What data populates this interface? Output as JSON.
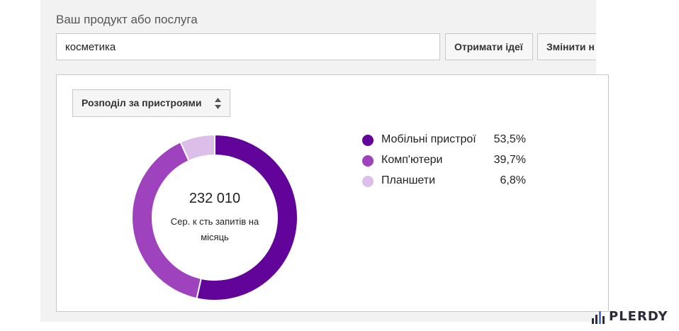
{
  "search": {
    "label": "Ваш продукт або послуга",
    "value": "косметика"
  },
  "buttons": {
    "get_ideas": "Отримати ідеї",
    "change": "Змінити н"
  },
  "device_select": {
    "label": "Розподіл за пристроями",
    "icon": "sort-arrows-icon"
  },
  "summary": {
    "total": "232 010",
    "caption_line1": "Сер. к сть запитів на",
    "caption_line2": "місяць"
  },
  "chart_data": {
    "type": "pie",
    "donut": true,
    "categories": [
      "Мобільні пристрої",
      "Комп'ютери",
      "Планшети"
    ],
    "values": [
      53.5,
      39.7,
      6.8
    ],
    "value_labels": [
      "53,5%",
      "39,7%",
      "6,8%"
    ],
    "colors": [
      "#62049a",
      "#9f42be",
      "#dcbfe8"
    ],
    "legend_position": "right"
  },
  "brand": {
    "name": "PLERDY",
    "icon": "bar-chart-logo-icon",
    "color": "#2b2b3a",
    "accent": "#4a7bd0"
  }
}
